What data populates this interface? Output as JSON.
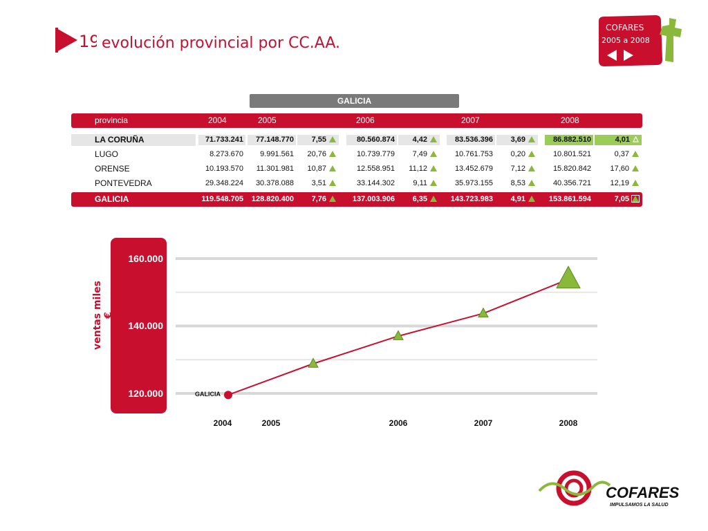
{
  "header": {
    "slide_number": "19",
    "title": "evolución provincial por CC.AA.",
    "badge_line1": "COFARES",
    "badge_line2": "2005 a 2008"
  },
  "region": "GALICIA",
  "table": {
    "columns": [
      "provincia",
      "2004",
      "2005",
      "2006",
      "2007",
      "2008"
    ],
    "rows": [
      {
        "name": "LA CORUÑA",
        "v2004": "71.733.241",
        "v2005": "77.148.770",
        "p2005": "7,55",
        "v2006": "80.560.874",
        "p2006": "4,42",
        "v2007": "83.536.396",
        "p2007": "3,69",
        "v2008": "86.882.510",
        "p2008": "4,01"
      },
      {
        "name": "LUGO",
        "v2004": "8.273.670",
        "v2005": "9.991.561",
        "p2005": "20,76",
        "v2006": "10.739.779",
        "p2006": "7,49",
        "v2007": "10.761.753",
        "p2007": "0,20",
        "v2008": "10.801.521",
        "p2008": "0,37"
      },
      {
        "name": "ORENSE",
        "v2004": "10.193.570",
        "v2005": "11.301.981",
        "p2005": "10,87",
        "v2006": "12.558.951",
        "p2006": "11,12",
        "v2007": "13.452.679",
        "p2007": "7,12",
        "v2008": "15.820.842",
        "p2008": "17,60"
      },
      {
        "name": "PONTEVEDRA",
        "v2004": "29.348.224",
        "v2005": "30.378.088",
        "p2005": "3,51",
        "v2006": "33.144.302",
        "p2006": "9,11",
        "v2007": "35.973.155",
        "p2007": "8,53",
        "v2008": "40.356.721",
        "p2008": "12,19"
      },
      {
        "name": "GALICIA",
        "v2004": "119.548.705",
        "v2005": "128.820.400",
        "p2005": "7,76",
        "v2006": "137.003.906",
        "p2006": "6,35",
        "v2007": "143.723.983",
        "p2007": "4,91",
        "v2008": "153.861.594",
        "p2008": "7,05"
      }
    ]
  },
  "chart_data": {
    "type": "line",
    "ylabel": "ventas miles €",
    "ylim": [
      120000,
      160000
    ],
    "yticks": [
      "160.000",
      "140.000",
      "120.000"
    ],
    "x": [
      "2004",
      "2005",
      "2006",
      "2007",
      "2008"
    ],
    "series": [
      {
        "name": "GALICIA",
        "values": [
          119549,
          128820,
          137004,
          143724,
          153862
        ]
      }
    ],
    "grid": true
  },
  "colors": {
    "accent": "#c8102e",
    "marker": "#8ab83a",
    "highlight": "#9ccc58"
  },
  "footer": {
    "brand": "COFARES",
    "tagline": "IMPULSAMOS LA SALUD"
  }
}
